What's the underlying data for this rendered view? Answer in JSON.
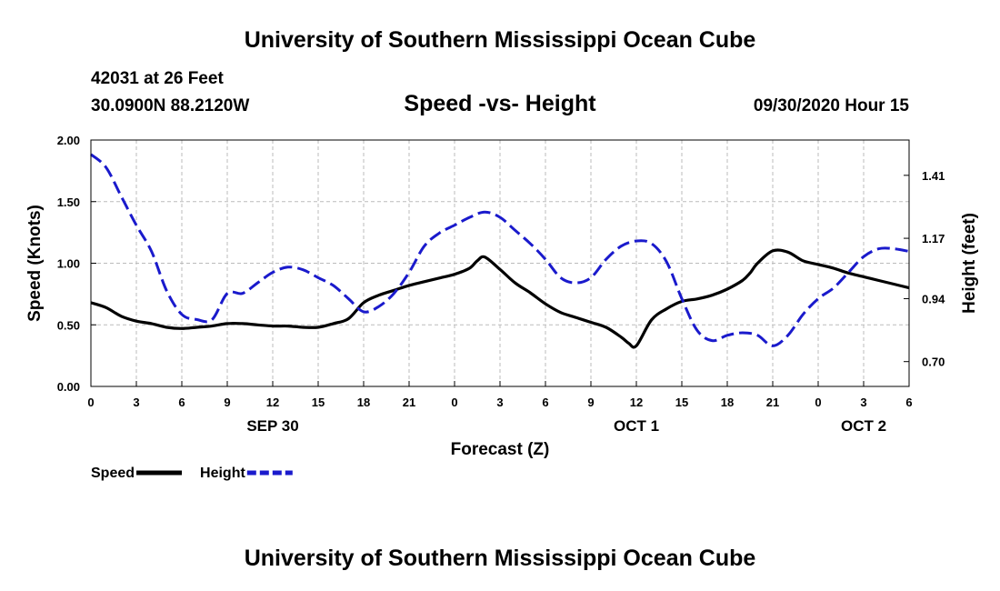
{
  "header": {
    "title": "University of Southern Mississippi Ocean Cube",
    "station": "42031 at 26 Feet",
    "coordinates": "30.0900N 88.2120W",
    "subtitle": "Speed -vs- Height",
    "datetime": "09/30/2020 Hour 15"
  },
  "footer": {
    "title": "University of Southern Mississippi Ocean Cube"
  },
  "chart_data": {
    "type": "line",
    "title": "Speed -vs- Height",
    "xlabel": "Forecast (Z)",
    "ylabel": "Speed (Knots)",
    "y2label": "Height (feet)",
    "xlim": [
      0,
      54
    ],
    "ylim": [
      0,
      2.0
    ],
    "y2lim": [
      0.6054,
      1.5446
    ],
    "x_ticks": [
      0,
      3,
      6,
      9,
      12,
      15,
      18,
      21,
      24,
      27,
      30,
      33,
      36,
      39,
      42,
      45,
      48,
      51,
      54
    ],
    "x_tick_labels": [
      "0",
      "3",
      "6",
      "9",
      "12",
      "15",
      "18",
      "21",
      "0",
      "3",
      "6",
      "9",
      "12",
      "15",
      "18",
      "21",
      "0",
      "3",
      "6"
    ],
    "date_labels": [
      {
        "x": 12,
        "label": "SEP 30"
      },
      {
        "x": 36,
        "label": "OCT 1"
      },
      {
        "x": 51,
        "label": "OCT 2"
      }
    ],
    "y_ticks": [
      0,
      0.5,
      1.0,
      1.5,
      2.0
    ],
    "y_tick_labels": [
      "0.00",
      "0.50",
      "1.00",
      "1.50",
      "2.00"
    ],
    "y2_ticks": [
      0.7,
      0.94,
      1.17,
      1.41
    ],
    "y2_tick_labels": [
      "0.70",
      "0.94",
      "1.17",
      "1.41"
    ],
    "grid": true,
    "legend_position": "bottom-left",
    "series": [
      {
        "name": "Speed",
        "axis": "left",
        "color": "#000000",
        "dash": "solid",
        "x": [
          0,
          1,
          2,
          3,
          4,
          5,
          6,
          7,
          8,
          9,
          10,
          11,
          12,
          13,
          14,
          15,
          16,
          17,
          18,
          19,
          20,
          21,
          22,
          23,
          24,
          25,
          25.5,
          26,
          27,
          28,
          29,
          30,
          31,
          32,
          33,
          34,
          35,
          35.5,
          36,
          37,
          38,
          39,
          40,
          41,
          42,
          43,
          43.5,
          44,
          45,
          46,
          47,
          48,
          49,
          50,
          51,
          52,
          53,
          54
        ],
        "values": [
          0.68,
          0.64,
          0.57,
          0.53,
          0.51,
          0.48,
          0.47,
          0.48,
          0.49,
          0.51,
          0.51,
          0.5,
          0.49,
          0.49,
          0.48,
          0.48,
          0.51,
          0.55,
          0.68,
          0.74,
          0.78,
          0.82,
          0.85,
          0.88,
          0.91,
          0.96,
          1.02,
          1.05,
          0.95,
          0.84,
          0.76,
          0.67,
          0.6,
          0.56,
          0.52,
          0.48,
          0.4,
          0.35,
          0.33,
          0.54,
          0.63,
          0.69,
          0.71,
          0.74,
          0.79,
          0.86,
          0.92,
          1.0,
          1.1,
          1.09,
          1.02,
          0.99,
          0.96,
          0.92,
          0.89,
          0.86,
          0.83,
          0.8
        ]
      },
      {
        "name": "Height",
        "axis": "right",
        "color": "#1a1acc",
        "dash": "dashed",
        "x": [
          0,
          1,
          2,
          3,
          4,
          5,
          6,
          7,
          8,
          9,
          10,
          11,
          12,
          13,
          14,
          15,
          16,
          17,
          18,
          19,
          20,
          21,
          22,
          23,
          24,
          25,
          26,
          27,
          28,
          29,
          30,
          31,
          32,
          33,
          34,
          35,
          36,
          37,
          38,
          39,
          40,
          41,
          42,
          43,
          44,
          45,
          46,
          47,
          48,
          49,
          50,
          51,
          52,
          53,
          54
        ],
        "values": [
          1.49,
          1.44,
          1.33,
          1.22,
          1.12,
          0.97,
          0.88,
          0.86,
          0.86,
          0.96,
          0.96,
          1.0,
          1.04,
          1.06,
          1.05,
          1.02,
          0.99,
          0.94,
          0.89,
          0.91,
          0.96,
          1.04,
          1.14,
          1.19,
          1.22,
          1.25,
          1.27,
          1.25,
          1.2,
          1.15,
          1.09,
          1.02,
          1.0,
          1.02,
          1.09,
          1.14,
          1.16,
          1.15,
          1.08,
          0.94,
          0.82,
          0.78,
          0.8,
          0.81,
          0.8,
          0.76,
          0.8,
          0.88,
          0.94,
          0.98,
          1.04,
          1.1,
          1.13,
          1.13,
          1.12
        ]
      }
    ]
  }
}
